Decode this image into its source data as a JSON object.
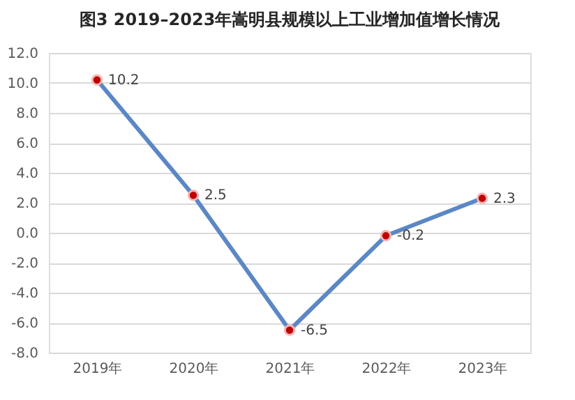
{
  "chart_data": {
    "type": "line",
    "title": "图3 2019–2023年嵩明县规模以上工业增加值增长情况",
    "categories": [
      "2019年",
      "2020年",
      "2021年",
      "2022年",
      "2023年"
    ],
    "series": [
      {
        "color": "#5b87c5",
        "values": [
          10.2,
          2.5,
          -6.5,
          -0.2,
          2.3
        ]
      }
    ],
    "marker": "circle",
    "line_style": "solid",
    "data_labels": true,
    "ylim": [
      -8,
      12
    ],
    "yticks": [
      {
        "value": -8,
        "label": "-8.0"
      },
      {
        "value": -6,
        "label": "-6.0"
      },
      {
        "value": -4,
        "label": "-4.0"
      },
      {
        "value": -2,
        "label": "-2.0"
      },
      {
        "value": 0,
        "label": "0.0"
      },
      {
        "value": 2,
        "label": "2.0"
      },
      {
        "value": 4,
        "label": "4.0"
      },
      {
        "value": 6,
        "label": "6.0"
      },
      {
        "value": 8,
        "label": "8.0"
      },
      {
        "value": 10,
        "label": "10.0"
      },
      {
        "value": 12,
        "label": "12.0"
      }
    ],
    "grid": "y"
  }
}
